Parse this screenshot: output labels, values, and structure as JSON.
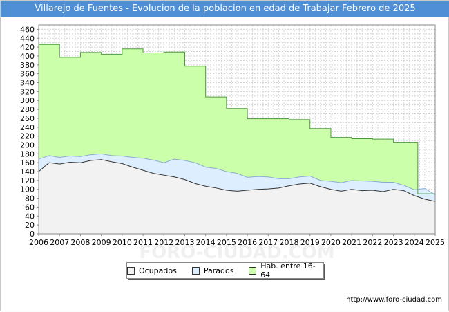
{
  "chart_data": {
    "type": "area",
    "title": "Villarejo de Fuentes - Evolucion de la poblacion en edad de Trabajar Febrero de 2025",
    "xlabel": "",
    "ylabel": "",
    "xlim": [
      2006,
      2025
    ],
    "ylim": [
      0,
      470
    ],
    "yticks": [
      0,
      20,
      40,
      60,
      80,
      100,
      120,
      140,
      160,
      180,
      200,
      220,
      240,
      260,
      280,
      300,
      320,
      340,
      360,
      380,
      400,
      420,
      440,
      460
    ],
    "xticks": [
      2006,
      2007,
      2008,
      2009,
      2010,
      2011,
      2012,
      2013,
      2014,
      2015,
      2016,
      2017,
      2018,
      2019,
      2020,
      2021,
      2022,
      2023,
      2024,
      2025
    ],
    "grid": true,
    "legend": {
      "position": "bottom",
      "entries": [
        "Ocupados",
        "Parados",
        "Hab. entre 16-64"
      ]
    },
    "series": [
      {
        "name": "Hab. entre 16-64",
        "color": "#ccffaa",
        "step": true,
        "x": [
          2006,
          2007,
          2008,
          2009,
          2010,
          2011,
          2012,
          2013,
          2014,
          2015,
          2016,
          2017,
          2018,
          2019,
          2020,
          2021,
          2022,
          2023,
          2024
        ],
        "values": [
          426,
          397,
          408,
          404,
          416,
          407,
          409,
          377,
          308,
          282,
          259,
          259,
          257,
          237,
          217,
          214,
          213,
          206,
          90
        ]
      },
      {
        "name": "Parados",
        "color": "#ddeeff",
        "note": "line shows Ocupados + Parados",
        "x": [
          2006,
          2006.5,
          2007,
          2007.5,
          2008,
          2008.5,
          2009,
          2009.5,
          2010,
          2010.5,
          2011,
          2011.5,
          2012,
          2012.5,
          2013,
          2013.5,
          2014,
          2014.5,
          2015,
          2015.5,
          2016,
          2016.5,
          2017,
          2017.5,
          2018,
          2018.5,
          2019,
          2019.5,
          2020,
          2020.5,
          2021,
          2021.5,
          2022,
          2022.5,
          2023,
          2023.5,
          2024,
          2024.5,
          2025
        ],
        "values": [
          168,
          176,
          172,
          175,
          174,
          178,
          180,
          176,
          175,
          172,
          170,
          166,
          160,
          168,
          165,
          160,
          150,
          147,
          140,
          136,
          127,
          129,
          128,
          124,
          124,
          128,
          130,
          120,
          118,
          115,
          120,
          119,
          118,
          116,
          116,
          109,
          99,
          102,
          88
        ]
      },
      {
        "name": "Ocupados",
        "color": "#f2f2f2",
        "x": [
          2006,
          2006.5,
          2007,
          2007.5,
          2008,
          2008.5,
          2009,
          2009.5,
          2010,
          2010.5,
          2011,
          2011.5,
          2012,
          2012.5,
          2013,
          2013.5,
          2014,
          2014.5,
          2015,
          2015.5,
          2016,
          2016.5,
          2017,
          2017.5,
          2018,
          2018.5,
          2019,
          2019.5,
          2020,
          2020.5,
          2021,
          2021.5,
          2022,
          2022.5,
          2023,
          2023.5,
          2024,
          2024.5,
          2025
        ],
        "values": [
          140,
          160,
          157,
          161,
          160,
          165,
          167,
          162,
          158,
          150,
          143,
          136,
          132,
          128,
          122,
          113,
          107,
          103,
          98,
          96,
          98,
          100,
          101,
          103,
          108,
          112,
          114,
          106,
          100,
          96,
          100,
          97,
          98,
          95,
          100,
          97,
          86,
          78,
          73
        ]
      }
    ]
  },
  "footer": {
    "source_url": "http://www.foro-ciudad.com"
  },
  "watermark": "FORO-CIUDAD.COM"
}
